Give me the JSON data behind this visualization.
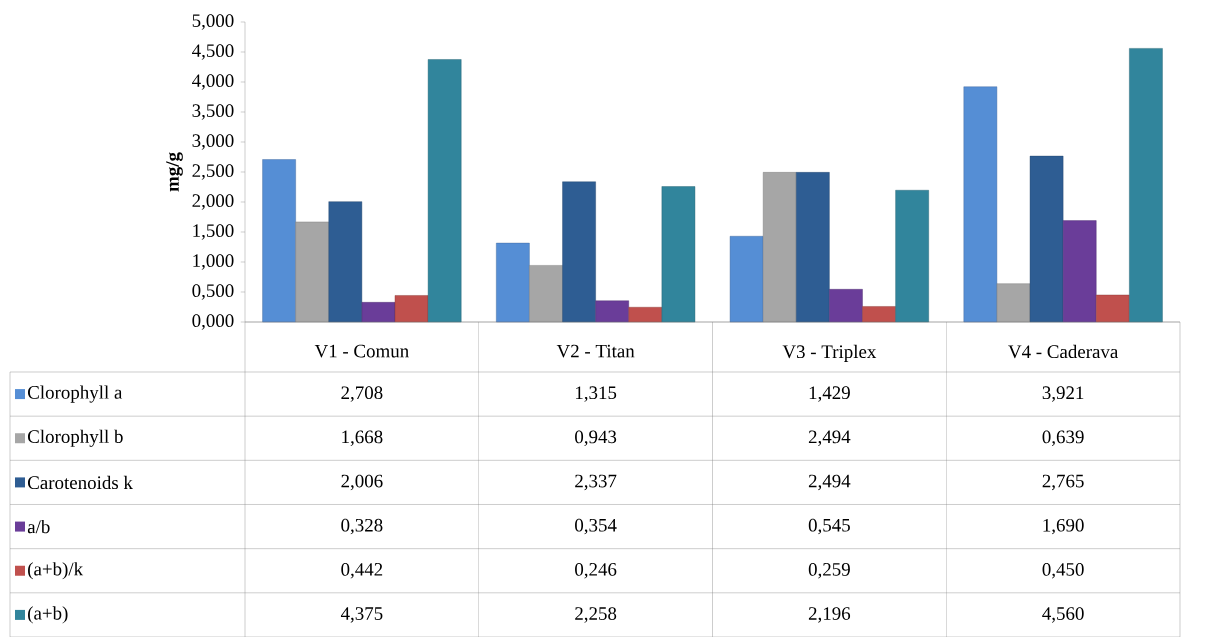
{
  "chart_data": {
    "type": "bar",
    "ylabel": "mg/g",
    "categories": [
      "V1 - Comun",
      "V2 - Titan",
      "V3 - Triplex",
      "V4 - Caderava"
    ],
    "series": [
      {
        "name": "Clorophyll a",
        "color": "#558ed5",
        "values": [
          2.708,
          1.315,
          1.429,
          3.921
        ],
        "value_labels": [
          "2,708",
          "1,315",
          "1,429",
          "3,921"
        ]
      },
      {
        "name": "Clorophyll b",
        "color": "#a6a6a6",
        "values": [
          1.668,
          0.943,
          2.494,
          0.639
        ],
        "value_labels": [
          "1,668",
          "0,943",
          "2,494",
          "0,639"
        ]
      },
      {
        "name": "Carotenoids k",
        "color": "#2e5d93",
        "values": [
          2.006,
          2.337,
          2.494,
          2.765
        ],
        "value_labels": [
          "2,006",
          "2,337",
          "2,494",
          "2,765"
        ]
      },
      {
        "name": "a/b",
        "color": "#6a3d99",
        "values": [
          0.328,
          0.354,
          0.545,
          1.69
        ],
        "value_labels": [
          "0,328",
          "0,354",
          "0,545",
          "1,690"
        ]
      },
      {
        "name": "(a+b)/k",
        "color": "#c0504d",
        "values": [
          0.442,
          0.246,
          0.259,
          0.45
        ],
        "value_labels": [
          "0,442",
          "0,246",
          "0,259",
          "0,450"
        ]
      },
      {
        "name": "(a+b)",
        "color": "#31859c",
        "values": [
          4.375,
          2.258,
          2.196,
          4.56
        ],
        "value_labels": [
          "4,375",
          "2,258",
          "2,196",
          "4,560"
        ]
      }
    ],
    "ylim": [
      0,
      5
    ],
    "yticks": [
      {
        "value": 0,
        "label": "0,000"
      },
      {
        "value": 0.5,
        "label": "0,500"
      },
      {
        "value": 1,
        "label": "1,000"
      },
      {
        "value": 1.5,
        "label": "1,500"
      },
      {
        "value": 2,
        "label": "2,000"
      },
      {
        "value": 2.5,
        "label": "2,500"
      },
      {
        "value": 3,
        "label": "3,000"
      },
      {
        "value": 3.5,
        "label": "3,500"
      },
      {
        "value": 4,
        "label": "4,000"
      },
      {
        "value": 4.5,
        "label": "4,500"
      },
      {
        "value": 5,
        "label": "5,000"
      }
    ],
    "grid": false,
    "legend": "bottom"
  }
}
